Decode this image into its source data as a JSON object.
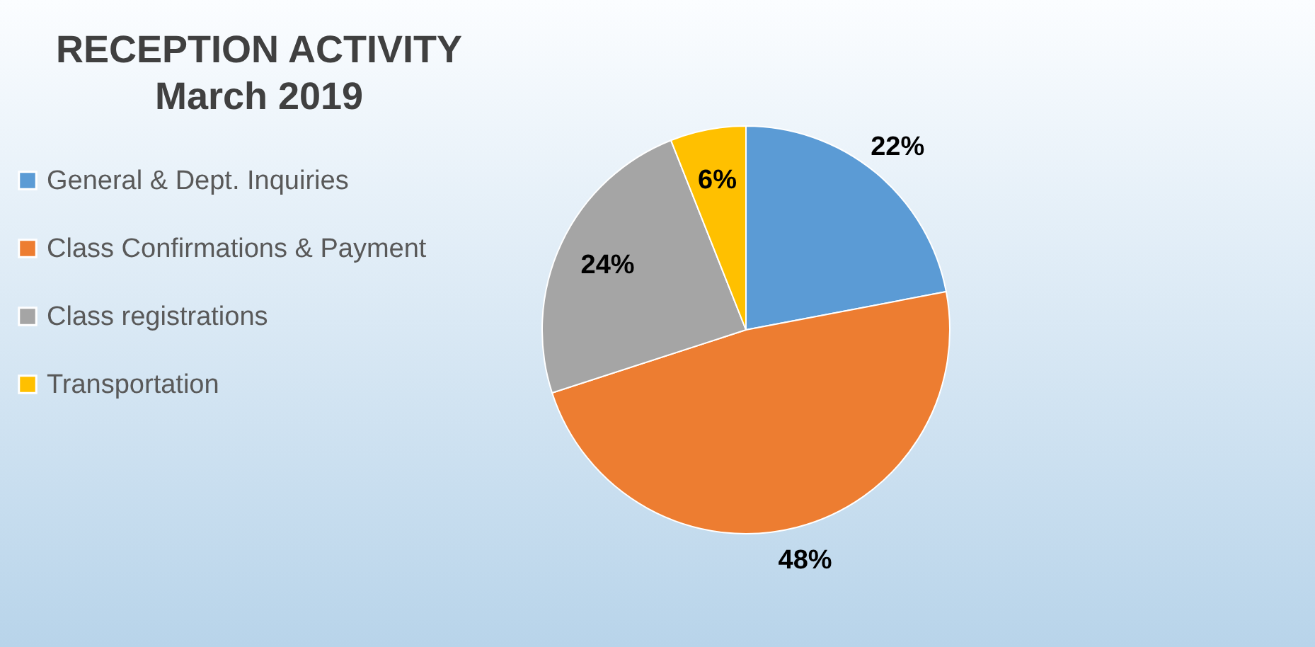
{
  "chart_data": {
    "type": "pie",
    "title": "RECEPTION ACTIVITY",
    "subtitle": "March 2019",
    "categories": [
      "General & Dept. Inquiries",
      "Class Confirmations & Payment",
      "Class registrations",
      "Transportation"
    ],
    "values": [
      22,
      48,
      24,
      6
    ],
    "colors": [
      "#5b9bd5",
      "#ed7d31",
      "#a5a5a5",
      "#ffc000"
    ],
    "value_labels": [
      "22%",
      "48%",
      "24%",
      "6%"
    ],
    "legend": "left"
  }
}
